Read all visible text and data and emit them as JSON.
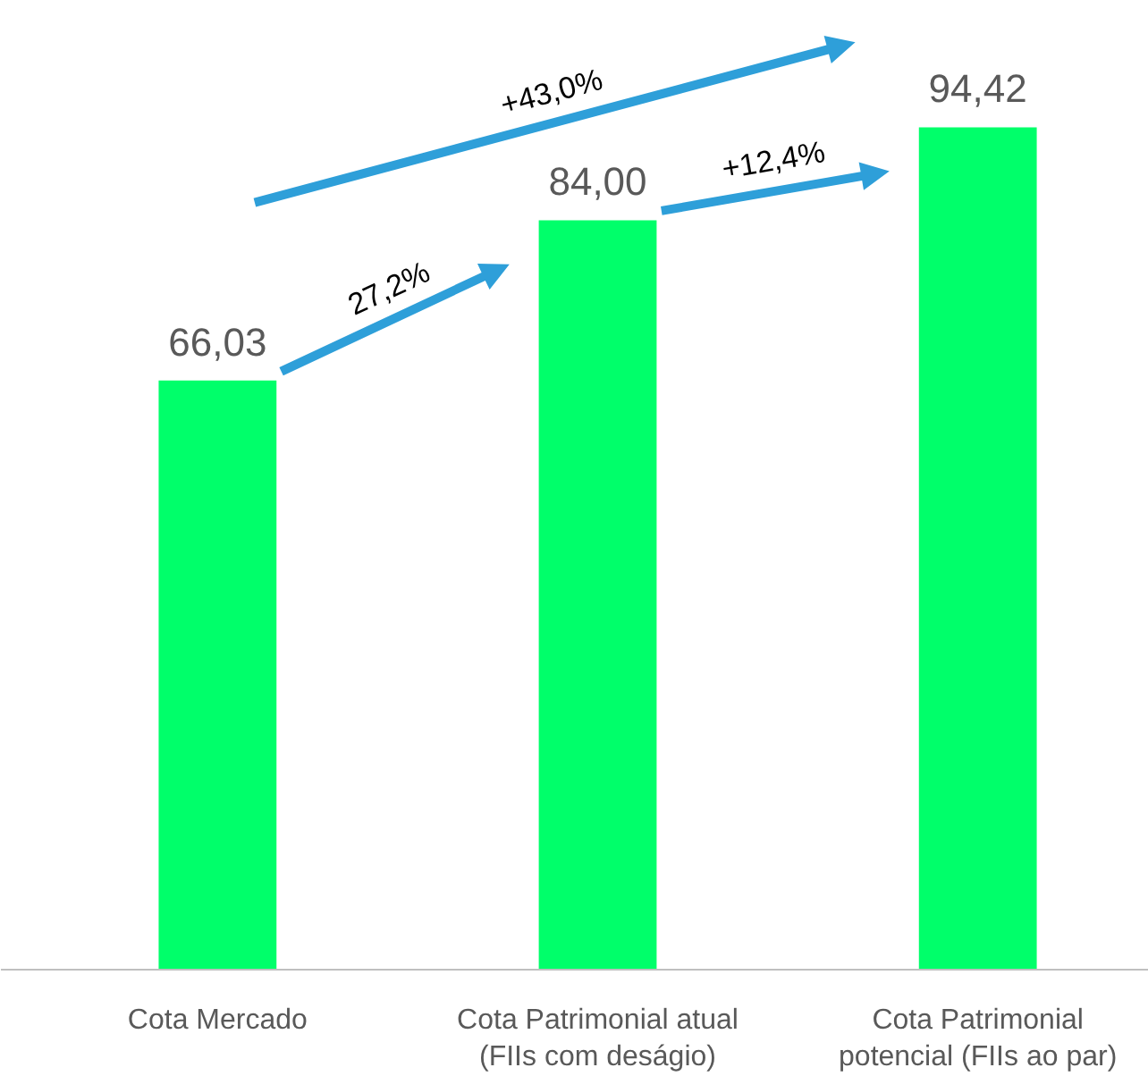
{
  "chart_data": {
    "type": "bar",
    "categories": [
      "Cota Mercado",
      "Cota Patrimonial atual\n(FIIs com deságio)",
      "Cota Patrimonial\npotencial (FIIs ao par)"
    ],
    "values": [
      66.03,
      84.0,
      94.42
    ],
    "value_labels": [
      "66,03",
      "84,00",
      "94,42"
    ],
    "color": "#00ff6a",
    "annotations": [
      "27,2%",
      "+12,4%",
      "+43,0%"
    ],
    "grid": false
  }
}
